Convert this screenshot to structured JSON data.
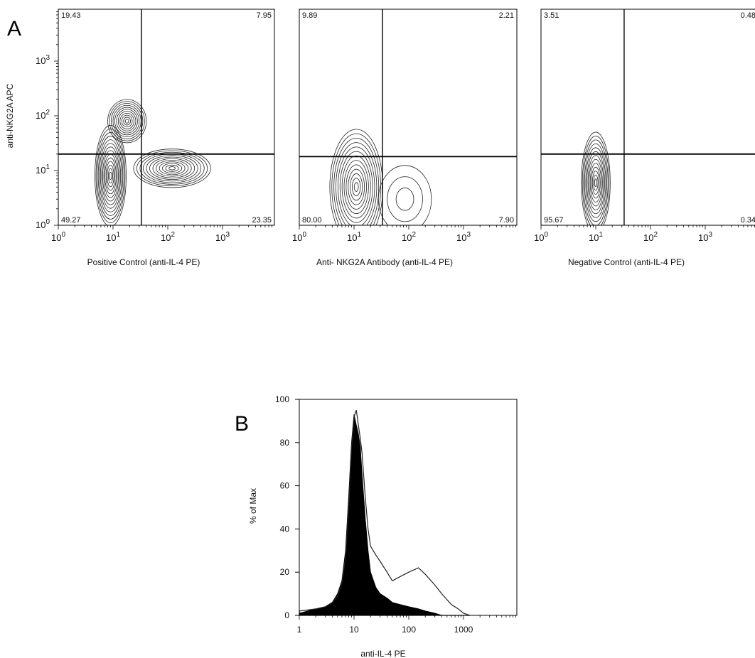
{
  "panel_labels": {
    "a": "A",
    "b": "B"
  },
  "chart_data": [
    {
      "type": "contour",
      "panel": "A",
      "xlabel": "Positive Control (anti-IL-4 PE)",
      "ylabel": "anti-NKG2A APC",
      "x_scale": "log",
      "y_scale": "log",
      "x_ticks": [
        "10^0",
        "10^1",
        "10^2",
        "10^3"
      ],
      "y_ticks": [
        "10^0",
        "10^1",
        "10^2",
        "10^3"
      ],
      "gate": {
        "x": 33,
        "y": 20
      },
      "quadrants": {
        "upper_left": "19.43",
        "upper_right": "7.95",
        "lower_left": "49.27",
        "lower_right": "23.35"
      },
      "populations": [
        {
          "x": 18,
          "y": 80,
          "sx": 0.16,
          "sy": 0.18,
          "levels": 11
        },
        {
          "x": 9,
          "y": 8,
          "sx": 0.13,
          "sy": 0.42,
          "levels": 14
        },
        {
          "x": 120,
          "y": 11,
          "sx": 0.32,
          "sy": 0.16,
          "levels": 12
        }
      ]
    },
    {
      "type": "contour",
      "panel": "A",
      "xlabel": "Anti- NKG2A Antibody (anti-IL-4 PE)",
      "x_scale": "log",
      "y_scale": "log",
      "x_ticks": [
        "10^0",
        "10^1",
        "10^2",
        "10^3"
      ],
      "gate": {
        "x": 33,
        "y": 18
      },
      "quadrants": {
        "upper_left": "9.89",
        "upper_right": "2.21",
        "lower_left": "80.00",
        "lower_right": "7.90"
      },
      "populations": [
        {
          "x": 11,
          "y": 5,
          "sx": 0.22,
          "sy": 0.48,
          "levels": 13
        },
        {
          "x": 85,
          "y": 3,
          "sx": 0.22,
          "sy": 0.28,
          "levels": 3
        }
      ]
    },
    {
      "type": "contour",
      "panel": "A",
      "xlabel": "Negative Control (anti-IL-4 PE)",
      "x_scale": "log",
      "y_scale": "log",
      "x_ticks": [
        "10^0",
        "10^1",
        "10^2",
        "10^3"
      ],
      "gate": {
        "x": 33,
        "y": 20
      },
      "quadrants": {
        "upper_left": "3.51",
        "upper_right": "0.48",
        "lower_left": "95.67",
        "lower_right": "0.34"
      },
      "populations": [
        {
          "x": 10,
          "y": 6,
          "sx": 0.12,
          "sy": 0.42,
          "levels": 13
        }
      ]
    },
    {
      "type": "histogram",
      "panel": "B",
      "xlabel": "anti-IL-4 PE",
      "ylabel": "% of Max",
      "x_scale": "log",
      "x_ticks": [
        "1",
        "10",
        "100",
        "1000"
      ],
      "y_ticks": [
        "0",
        "20",
        "40",
        "60",
        "80",
        "100"
      ],
      "ylim": [
        0,
        100
      ],
      "series": [
        {
          "style": "filled",
          "x": [
            1,
            2,
            3,
            4,
            5,
            6,
            7,
            8,
            9,
            10,
            11,
            12,
            13,
            14,
            16,
            18,
            20,
            25,
            30,
            40,
            50,
            70,
            100,
            150,
            200,
            300,
            400
          ],
          "values": [
            1,
            3,
            4,
            6,
            10,
            16,
            30,
            55,
            80,
            93,
            88,
            84,
            78,
            65,
            45,
            30,
            20,
            13,
            10,
            8,
            6,
            5,
            4,
            3,
            2,
            1,
            0
          ]
        },
        {
          "style": "outline",
          "x": [
            1,
            2,
            3,
            4,
            5,
            6,
            7,
            8,
            9,
            10,
            11,
            12,
            13,
            14,
            16,
            18,
            20,
            25,
            30,
            40,
            50,
            70,
            100,
            150,
            200,
            300,
            400,
            600,
            800,
            1000,
            1300
          ],
          "values": [
            2,
            3,
            4,
            6,
            9,
            15,
            27,
            50,
            78,
            92,
            95,
            88,
            82,
            75,
            55,
            40,
            32,
            28,
            25,
            20,
            16,
            18,
            20,
            22,
            19,
            14,
            10,
            5,
            3,
            1,
            0
          ]
        }
      ]
    }
  ]
}
